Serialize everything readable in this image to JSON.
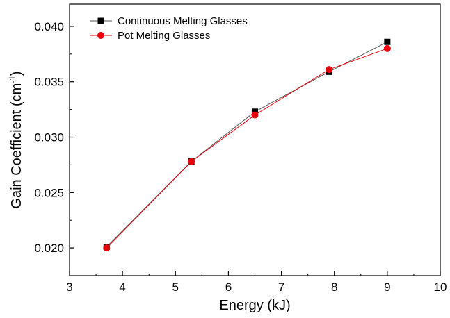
{
  "chart_data": {
    "type": "line",
    "xlabel": "Energy (kJ)",
    "ylabel_main": "Gain Coefficient (cm",
    "ylabel_sup": "-1",
    "ylabel_close": ")",
    "xlim": [
      3,
      10
    ],
    "ylim": [
      0.0175,
      0.042
    ],
    "x_ticks": [
      3,
      4,
      5,
      6,
      7,
      8,
      9,
      10
    ],
    "x_tick_labels": [
      "3",
      "4",
      "5",
      "6",
      "7",
      "8",
      "9",
      "10"
    ],
    "y_ticks": [
      0.02,
      0.025,
      0.03,
      0.035,
      0.04
    ],
    "y_tick_labels": [
      "0.020",
      "0.025",
      "0.030",
      "0.035",
      "0.040"
    ],
    "grid": false,
    "legend_position": "top-left",
    "series": [
      {
        "name": "Continuous Melting Glasses",
        "marker": "square",
        "color": "#000000",
        "line_color": "#555555",
        "x": [
          3.7,
          5.3,
          6.5,
          7.9,
          9.0
        ],
        "y": [
          0.0201,
          0.0278,
          0.0323,
          0.0359,
          0.0386
        ]
      },
      {
        "name": "Pot Melting Glasses",
        "marker": "circle",
        "color": "#e8000b",
        "line_color": "#e8000b",
        "x": [
          3.7,
          5.3,
          6.5,
          7.9,
          9.0
        ],
        "y": [
          0.02,
          0.0278,
          0.032,
          0.0361,
          0.038
        ]
      }
    ]
  }
}
